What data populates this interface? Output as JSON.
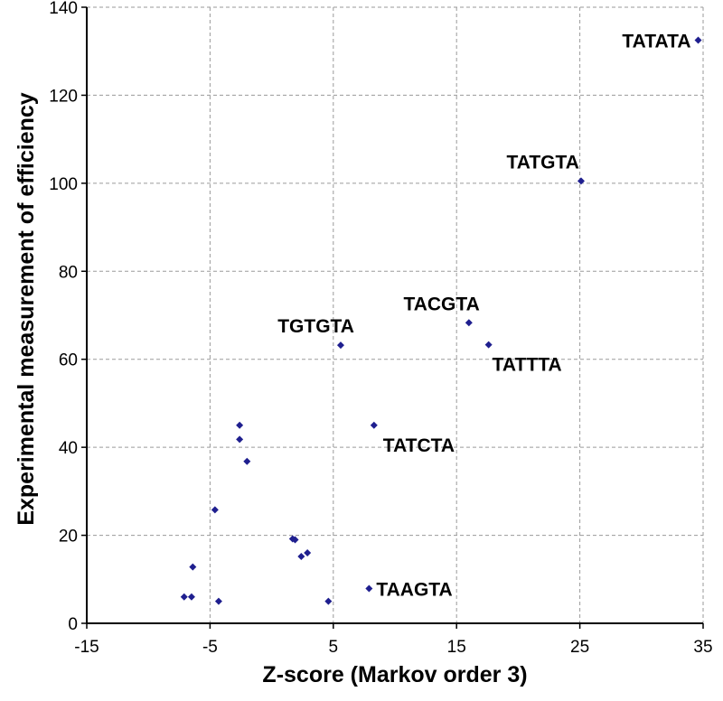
{
  "chart_data": {
    "type": "scatter",
    "title": "",
    "xlabel": "Z-score (Markov order 3)",
    "ylabel": "Experimental measurement of efficiency",
    "xlim": [
      -15,
      35
    ],
    "ylim": [
      0,
      140
    ],
    "xticks": [
      -15,
      -5,
      5,
      15,
      25,
      35
    ],
    "yticks": [
      0,
      20,
      40,
      60,
      80,
      100,
      120,
      140
    ],
    "grid": true,
    "marker_color": "#1f1f8f",
    "points": [
      {
        "x": 34.6,
        "y": 132.5,
        "label": "TATATA"
      },
      {
        "x": 25.1,
        "y": 100.5,
        "label": "TATGTA"
      },
      {
        "x": 16.0,
        "y": 68.3,
        "label": "TACGTA"
      },
      {
        "x": 17.6,
        "y": 63.3,
        "label": "TATTTA"
      },
      {
        "x": 5.6,
        "y": 63.2,
        "label": "TGTGTA"
      },
      {
        "x": 8.3,
        "y": 45.0,
        "label": "TATCTA"
      },
      {
        "x": 7.9,
        "y": 7.9,
        "label": "TAAGTA"
      },
      {
        "x": -2.6,
        "y": 45.0,
        "label": ""
      },
      {
        "x": -2.6,
        "y": 41.8,
        "label": ""
      },
      {
        "x": -2.0,
        "y": 36.8,
        "label": ""
      },
      {
        "x": -4.6,
        "y": 25.8,
        "label": ""
      },
      {
        "x": 1.7,
        "y": 19.2,
        "label": ""
      },
      {
        "x": 1.9,
        "y": 19.0,
        "label": ""
      },
      {
        "x": 2.4,
        "y": 15.2,
        "label": ""
      },
      {
        "x": 2.9,
        "y": 16.0,
        "label": ""
      },
      {
        "x": -6.4,
        "y": 12.8,
        "label": ""
      },
      {
        "x": -7.1,
        "y": 6.0,
        "label": ""
      },
      {
        "x": -6.5,
        "y": 6.0,
        "label": ""
      },
      {
        "x": -4.3,
        "y": 5.0,
        "label": ""
      },
      {
        "x": 4.6,
        "y": 5.0,
        "label": ""
      }
    ]
  }
}
